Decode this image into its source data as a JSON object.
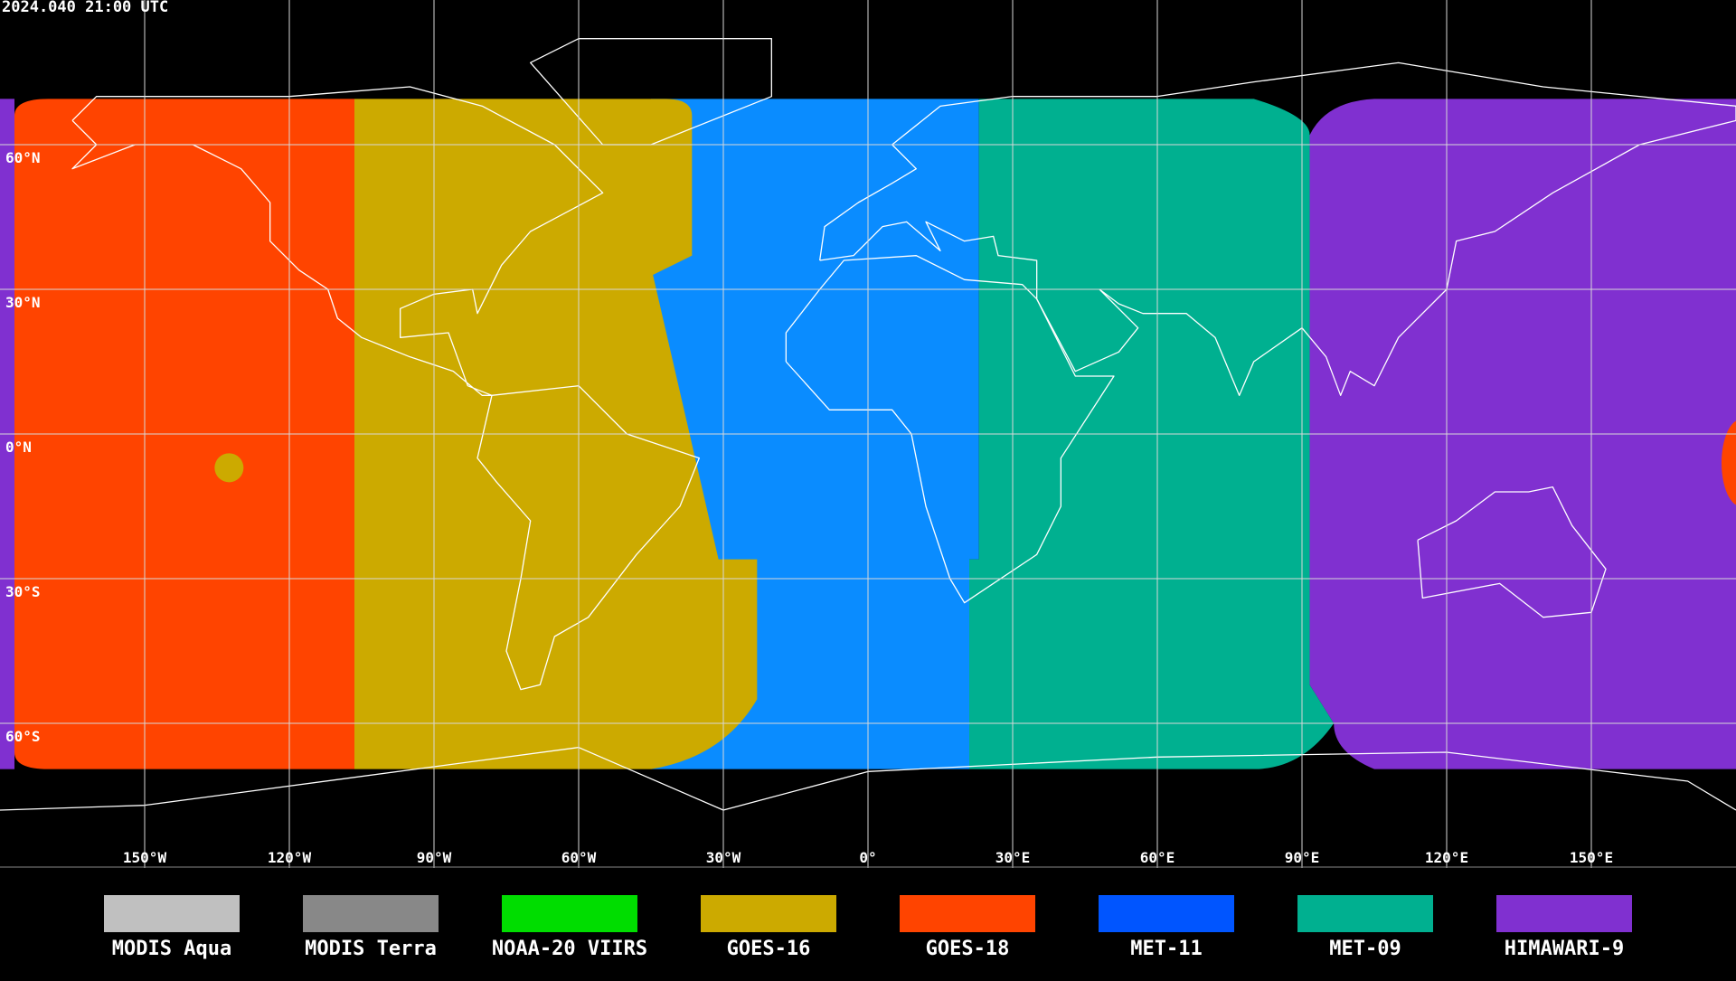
{
  "header": {
    "timestamp": "2024.040 21:00 UTC"
  },
  "lat_labels": [
    {
      "value": 60,
      "label": "60°N"
    },
    {
      "value": 30,
      "label": "30°N"
    },
    {
      "value": 0,
      "label": "0°N"
    },
    {
      "value": -30,
      "label": "30°S"
    },
    {
      "value": -60,
      "label": "60°S"
    }
  ],
  "lon_labels": [
    {
      "value": -150,
      "label": "150°W"
    },
    {
      "value": -120,
      "label": "120°W"
    },
    {
      "value": -90,
      "label": "90°W"
    },
    {
      "value": -60,
      "label": "60°W"
    },
    {
      "value": -30,
      "label": "30°W"
    },
    {
      "value": 0,
      "label": "0°"
    },
    {
      "value": 30,
      "label": "30°E"
    },
    {
      "value": 60,
      "label": "60°E"
    },
    {
      "value": 90,
      "label": "90°E"
    },
    {
      "value": 120,
      "label": "120°E"
    },
    {
      "value": 150,
      "label": "150°E"
    }
  ],
  "legend": [
    {
      "name": "MODIS Aqua",
      "color": "#c0c0c0"
    },
    {
      "name": "MODIS Terra",
      "color": "#888888"
    },
    {
      "name": "NOAA-20 VIIRS",
      "color": "#00dd00"
    },
    {
      "name": "GOES-16",
      "color": "#ccaa00"
    },
    {
      "name": "GOES-18",
      "color": "#ff4400"
    },
    {
      "name": "MET-11",
      "color": "#0055ff"
    },
    {
      "name": "MET-09",
      "color": "#00b090"
    },
    {
      "name": "HIMAWARI-9",
      "color": "#8030d0"
    }
  ]
}
